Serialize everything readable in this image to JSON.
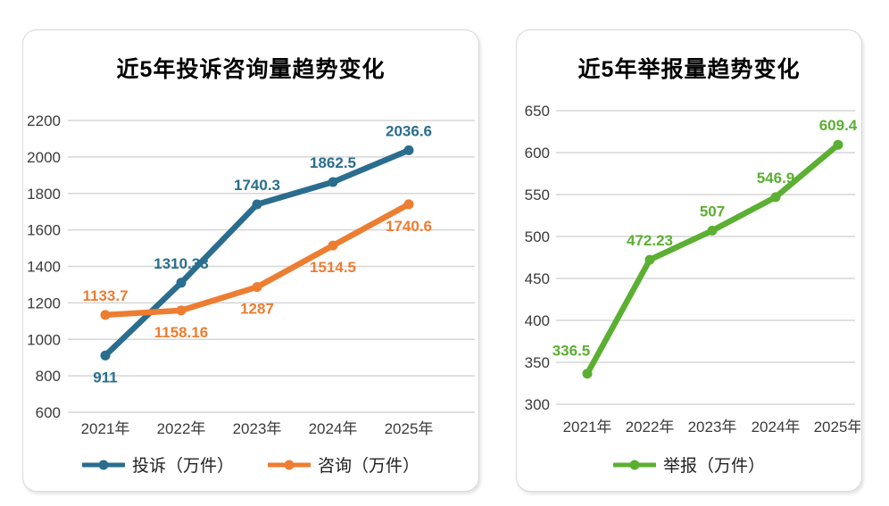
{
  "page": {
    "background_color": "#ffffff",
    "panel_border_color": "#d8d8d8",
    "grid_color": "#d6d6d6",
    "tick_color": "#3b3b3b"
  },
  "chart_data": [
    {
      "id": "complaints-consultations-trend",
      "type": "line",
      "title": "近5年投诉咨询量趋势变化",
      "categories": [
        "2021年",
        "2022年",
        "2023年",
        "2024年",
        "2025年"
      ],
      "series": [
        {
          "name": "投诉（万件）",
          "color": "#2A6D8E",
          "values": [
            911,
            1310.38,
            1740.3,
            1862.5,
            2036.6
          ],
          "labels": [
            "911",
            "1310.38",
            "1740.3",
            "1862.5",
            "2036.6"
          ],
          "label_positions": [
            "below",
            "above",
            "above",
            "above",
            "above"
          ]
        },
        {
          "name": "咨询（万件）",
          "color": "#ED7D31",
          "values": [
            1133.7,
            1158.16,
            1287,
            1514.5,
            1740.6
          ],
          "labels": [
            "1133.7",
            "1158.16",
            "1287",
            "1514.5",
            "1740.6"
          ],
          "label_positions": [
            "above",
            "below",
            "below",
            "below",
            "below"
          ]
        }
      ],
      "ylim": [
        600,
        2200
      ],
      "ytick_step": 200,
      "grid": true,
      "legend_position": "bottom",
      "unit": "万件"
    },
    {
      "id": "reports-trend",
      "type": "line",
      "title": "近5年举报量趋势变化",
      "categories": [
        "2021年",
        "2022年",
        "2023年",
        "2024年",
        "2025年"
      ],
      "series": [
        {
          "name": "举报（万件）",
          "color": "#5BAF32",
          "values": [
            336.5,
            472.23,
            507,
            546.9,
            609.4
          ],
          "labels": [
            "336.5",
            "472.23",
            "507",
            "546.9",
            "609.4"
          ],
          "label_positions": [
            "above-left",
            "above",
            "above",
            "above",
            "above"
          ]
        }
      ],
      "ylim": [
        300,
        650
      ],
      "ytick_step": 50,
      "grid": true,
      "legend_position": "bottom",
      "unit": "万件"
    }
  ]
}
